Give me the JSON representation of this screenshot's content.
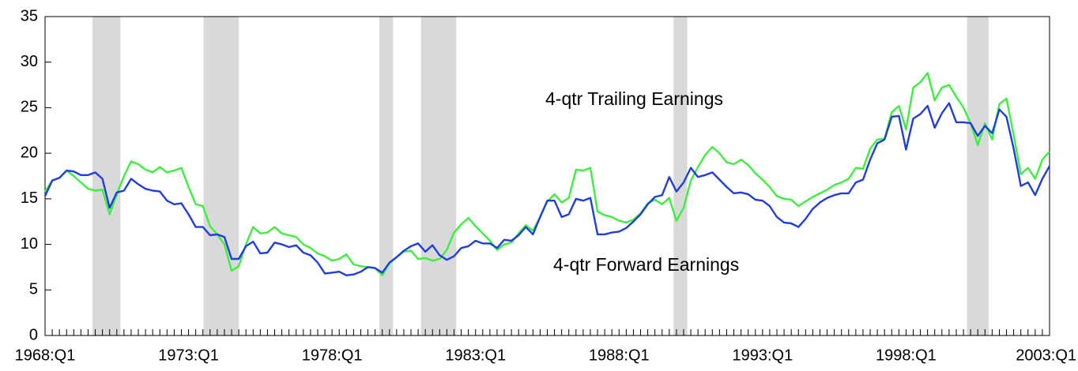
{
  "chart_data": {
    "type": "line",
    "categories": [
      "1968:Q1",
      null,
      null,
      null,
      null,
      null,
      null,
      null,
      null,
      null,
      null,
      null,
      null,
      null,
      null,
      null,
      null,
      null,
      null,
      null,
      "1973:Q1",
      null,
      null,
      null,
      null,
      null,
      null,
      null,
      null,
      null,
      null,
      null,
      null,
      null,
      null,
      null,
      null,
      null,
      null,
      null,
      "1978:Q1",
      null,
      null,
      null,
      null,
      null,
      null,
      null,
      null,
      null,
      null,
      null,
      null,
      null,
      null,
      null,
      null,
      null,
      null,
      null,
      "1983:Q1",
      null,
      null,
      null,
      null,
      null,
      null,
      null,
      null,
      null,
      null,
      null,
      null,
      null,
      null,
      null,
      null,
      null,
      null,
      null,
      "1988:Q1",
      null,
      null,
      null,
      null,
      null,
      null,
      null,
      null,
      null,
      null,
      null,
      null,
      null,
      null,
      null,
      null,
      null,
      null,
      null,
      "1993:Q1",
      null,
      null,
      null,
      null,
      null,
      null,
      null,
      null,
      null,
      null,
      null,
      null,
      null,
      null,
      null,
      null,
      null,
      null,
      null,
      "1998:Q1",
      null,
      null,
      null,
      null,
      null,
      null,
      null,
      null,
      null,
      null,
      null,
      null,
      null,
      null,
      null,
      null,
      null,
      null,
      null,
      "2003:Q1"
    ],
    "series": [
      {
        "name": "4-qtr Trailing Earnings",
        "color": "#3df03d",
        "values": [
          15.8,
          17,
          17.3,
          18.1,
          17.5,
          16.8,
          16.1,
          15.9,
          16,
          13.3,
          15.5,
          17.5,
          19.1,
          18.8,
          18.2,
          17.9,
          18.5,
          17.9,
          18.1,
          18.4,
          16.3,
          14.4,
          14.2,
          12,
          11.1,
          10,
          7.1,
          7.6,
          10,
          11.9,
          11.2,
          11.3,
          11.9,
          11.2,
          11,
          10.8,
          10,
          9.6,
          9,
          8.7,
          8.2,
          8.4,
          8.9,
          7.8,
          7.6,
          7.5,
          7.4,
          6.6,
          7.9,
          8.6,
          9.2,
          9.3,
          8.4,
          8.5,
          8.2,
          8.4,
          9.4,
          11.3,
          12.2,
          12.9,
          12,
          11.2,
          10.4,
          9.4,
          10,
          10.2,
          11.2,
          12.1,
          11.5,
          13,
          14.7,
          15.5,
          14.6,
          15.1,
          18.2,
          18.1,
          18.4,
          13.6,
          13.2,
          13,
          12.6,
          12.4,
          12.7,
          13.4,
          14.5,
          14.9,
          14.4,
          15.1,
          12.6,
          14,
          17,
          18.5,
          19.8,
          20.7,
          20,
          19,
          18.8,
          19.3,
          18.7,
          17.8,
          17.1,
          16.3,
          15.3,
          15,
          14.9,
          14.2,
          14.7,
          15.2,
          15.6,
          16,
          16.5,
          16.8,
          17.2,
          18.4,
          18.3,
          20.5,
          21.5,
          21.6,
          24.5,
          25.2,
          22.6,
          27.2,
          27.8,
          28.8,
          25.8,
          27.2,
          27.5,
          26.2,
          25,
          23.3,
          20.9,
          23.3,
          21.5,
          25.4,
          26,
          22,
          17.7,
          18.4,
          17.2,
          19.3,
          20.2
        ]
      },
      {
        "name": "4-qtr Forward Earnings",
        "color": "#1f3ee0",
        "values": [
          15.3,
          17,
          17.3,
          18.1,
          18,
          17.6,
          17.6,
          17.9,
          17.2,
          14,
          15.7,
          15.9,
          17.2,
          16.6,
          16.1,
          15.9,
          15.8,
          14.8,
          14.4,
          14.5,
          13.3,
          11.9,
          11.9,
          11,
          11.1,
          10.8,
          8.4,
          8.4,
          9.8,
          10.3,
          9,
          9.1,
          10.2,
          10,
          9.7,
          9.9,
          9.1,
          8.8,
          8,
          6.8,
          6.9,
          7,
          6.6,
          6.7,
          7,
          7.5,
          7.4,
          6.9,
          8,
          8.6,
          9.3,
          9.8,
          10.1,
          9.2,
          9.9,
          8.8,
          8.3,
          8.7,
          9.6,
          9.8,
          10.4,
          10.1,
          10.1,
          9.6,
          10.5,
          10.4,
          11,
          11.9,
          11.1,
          13,
          14.8,
          14.8,
          13,
          13.3,
          15,
          14.8,
          15.1,
          11.1,
          11.1,
          11.3,
          11.4,
          11.8,
          12.5,
          13.3,
          14.4,
          15.2,
          15.4,
          17.4,
          15.8,
          16.8,
          18.4,
          17.4,
          17.6,
          17.9,
          17.1,
          16.3,
          15.6,
          15.7,
          15.5,
          14.9,
          14.8,
          14.2,
          13,
          12.4,
          12.3,
          11.9,
          12.8,
          13.9,
          14.6,
          15.1,
          15.4,
          15.6,
          15.6,
          16.8,
          17.1,
          19.3,
          21.1,
          21.5,
          24,
          24.1,
          20.4,
          23.8,
          24.3,
          25.2,
          22.8,
          24.4,
          25.5,
          23.4,
          23.4,
          23.3,
          21.9,
          23,
          22.2,
          24.8,
          24,
          20.5,
          16.4,
          16.8,
          15.4,
          17.2,
          18.6
        ]
      }
    ],
    "annotations": [
      "4-qtr Trailing Earnings",
      "4-qtr Forward Earnings"
    ],
    "shaded_ranges": [
      [
        6.6,
        10.5
      ],
      [
        22.1,
        27.0
      ],
      [
        46.6,
        48.5
      ],
      [
        52.4,
        57.3
      ],
      [
        87.6,
        89.5
      ],
      [
        128.5,
        131.5
      ]
    ],
    "shade_color": "#d9d9d9",
    "ylim": [
      0,
      35
    ],
    "yticks": [
      0,
      5,
      10,
      15,
      20,
      25,
      30,
      35
    ]
  }
}
